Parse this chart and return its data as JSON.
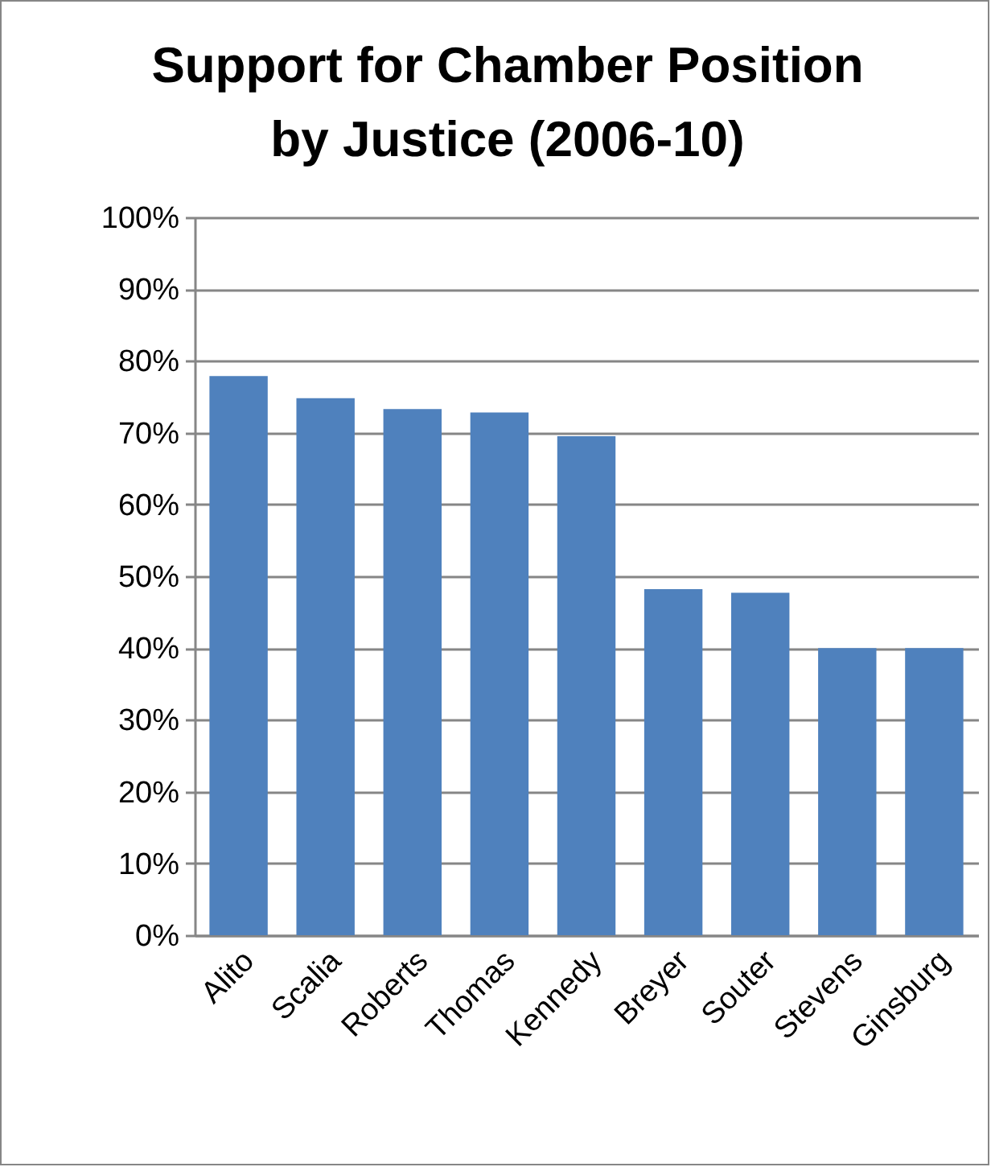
{
  "chart_data": {
    "type": "bar",
    "title": "Support for Chamber Position\nby Justice (2006-10)",
    "categories": [
      "Alito",
      "Scalia",
      "Roberts",
      "Thomas",
      "Kennedy",
      "Breyer",
      "Souter",
      "Stevens",
      "Ginsburg"
    ],
    "values": [
      77.9,
      74.8,
      73.3,
      72.8,
      69.5,
      48.2,
      47.7,
      40,
      40
    ],
    "color": "#4f81bd",
    "ylim": [
      0,
      100
    ],
    "yticks": [
      {
        "value": 0,
        "label": "0%"
      },
      {
        "value": 10,
        "label": "10%"
      },
      {
        "value": 20,
        "label": "20%"
      },
      {
        "value": 30,
        "label": "30%"
      },
      {
        "value": 40,
        "label": "40%"
      },
      {
        "value": 50,
        "label": "50%"
      },
      {
        "value": 60,
        "label": "60%"
      },
      {
        "value": 70,
        "label": "70%"
      },
      {
        "value": 80,
        "label": "80%"
      },
      {
        "value": 90,
        "label": "90%"
      },
      {
        "value": 100,
        "label": "100%"
      }
    ],
    "grid": "y"
  }
}
